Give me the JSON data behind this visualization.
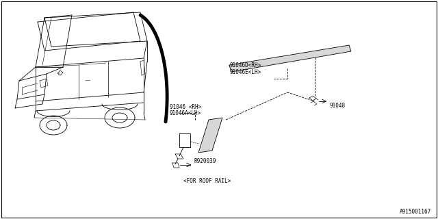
{
  "bg_color": "#ffffff",
  "border_color": "#000000",
  "footer_id": "A915001167",
  "labels": {
    "part1_rh": "91046D<RH>",
    "part1_lh": "91046E<LH>",
    "part2_rh": "91046 <RH>",
    "part2_lh": "91046A<LH>",
    "part3": "91048",
    "part4": "R920039",
    "note": "<FOR ROOF RAIL>"
  },
  "line_color": "#000000",
  "tlw": 0.6,
  "klw": 1.8,
  "fs": 5.5,
  "fs_footer": 5.5
}
